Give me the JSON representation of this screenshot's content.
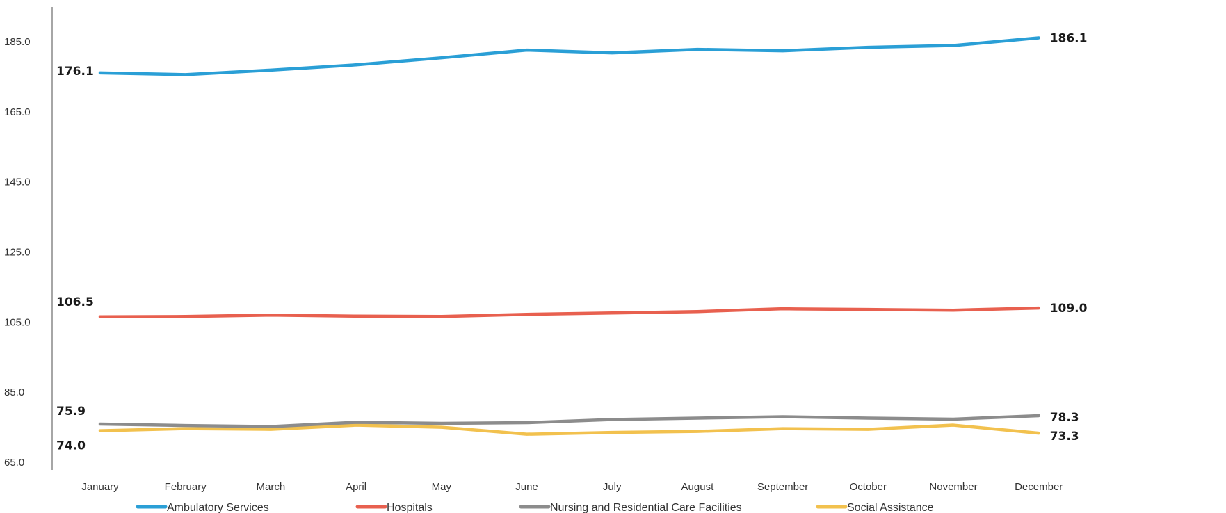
{
  "chart_data": {
    "type": "line",
    "title": "",
    "xlabel": "",
    "ylabel": "",
    "categories": [
      "January",
      "February",
      "March",
      "April",
      "May",
      "June",
      "July",
      "August",
      "September",
      "October",
      "November",
      "December"
    ],
    "ylim": [
      65,
      185
    ],
    "yticks": [
      "185.0",
      "165.0",
      "145.0",
      "125.0",
      "105.0",
      "85.0",
      "65.0"
    ],
    "grid": false,
    "legend_position": "bottom",
    "series": [
      {
        "name": "Ambulatory Services",
        "color": "#2a9fd6",
        "values": [
          176.1,
          175.6,
          176.9,
          178.4,
          180.4,
          182.6,
          181.8,
          182.8,
          182.4,
          183.4,
          183.9,
          186.1
        ],
        "labels": {
          "start": "176.1",
          "end": "186.1"
        }
      },
      {
        "name": "Hospitals",
        "color": "#e8604f",
        "values": [
          106.5,
          106.6,
          107.0,
          106.7,
          106.6,
          107.2,
          107.6,
          108.0,
          108.8,
          108.6,
          108.4,
          109.0
        ],
        "labels": {
          "start": "106.5",
          "end": "109.0"
        }
      },
      {
        "name": "Nursing and Residential Care Facilities",
        "color": "#8c8c8c",
        "values": [
          75.9,
          75.5,
          75.2,
          76.4,
          76.1,
          76.3,
          77.2,
          77.6,
          78.0,
          77.6,
          77.3,
          78.3
        ],
        "labels": {
          "start": "75.9",
          "end": "78.3"
        }
      },
      {
        "name": "Social Assistance",
        "color": "#f2c14e",
        "values": [
          74.0,
          74.6,
          74.4,
          75.6,
          75.0,
          73.0,
          73.5,
          73.8,
          74.6,
          74.4,
          75.6,
          73.3
        ],
        "labels": {
          "start": "74.0",
          "end": "73.3"
        }
      }
    ]
  }
}
